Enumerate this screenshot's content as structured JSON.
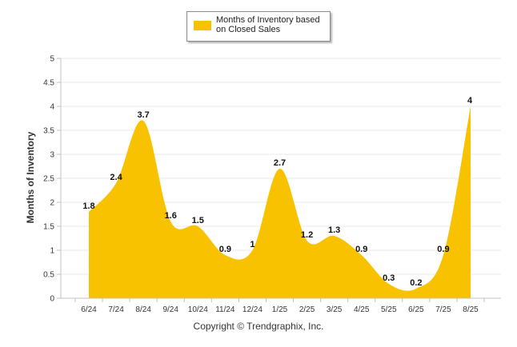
{
  "chart_data": {
    "type": "area",
    "categories": [
      "6/24",
      "7/24",
      "8/24",
      "9/24",
      "10/24",
      "11/24",
      "12/24",
      "1/25",
      "2/25",
      "3/25",
      "4/25",
      "5/25",
      "6/25",
      "7/25",
      "8/25"
    ],
    "series": [
      {
        "name": "Months of Inventory based on Closed Sales",
        "values": [
          1.8,
          2.4,
          3.7,
          1.6,
          1.5,
          0.9,
          1,
          2.7,
          1.2,
          1.3,
          0.9,
          0.3,
          0.2,
          0.9,
          4
        ]
      }
    ],
    "data_labels": [
      "1.8",
      "2.4",
      "3.7",
      "1.6",
      "1.5",
      "0.9",
      "1",
      "2.7",
      "1.2",
      "1.3",
      "0.9",
      "0.3",
      "0.2",
      "0.9",
      "4"
    ],
    "ylabel": "Months of Inventory",
    "xlabel": "",
    "ylim": [
      0,
      5
    ],
    "yticks": [
      0,
      0.5,
      1,
      1.5,
      2,
      2.5,
      3,
      3.5,
      4,
      4.5,
      5
    ],
    "ytick_labels": [
      "0",
      "0.5",
      "1",
      "1.5",
      "2",
      "2.5",
      "3",
      "3.5",
      "4",
      "4.5",
      "5"
    ],
    "grid": true,
    "legend_position": "top-center",
    "colors": {
      "series": "#f8c200",
      "grid": "#e8e8e8",
      "axis": "#c0c0c0"
    }
  },
  "legend": {
    "label": "Months of Inventory based on Closed Sales"
  },
  "footer": {
    "copyright": "Copyright © Trendgraphix, Inc."
  }
}
